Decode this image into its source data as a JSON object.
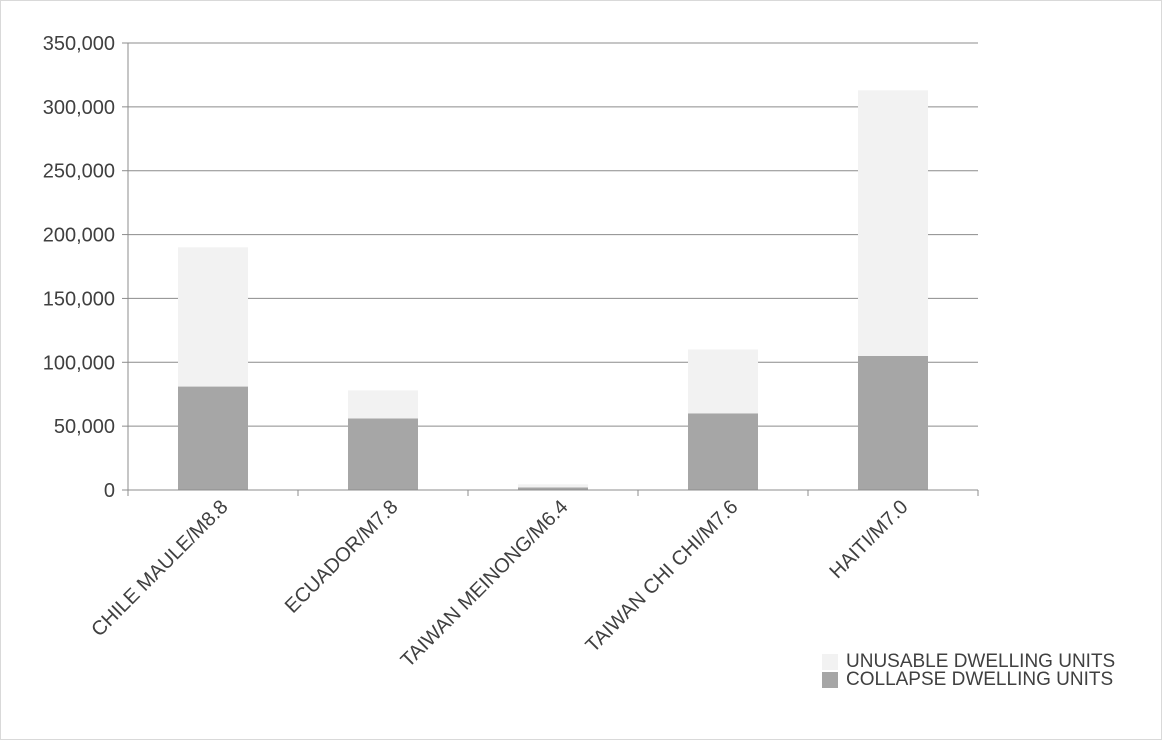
{
  "chart_data": {
    "type": "bar",
    "stacked": true,
    "title": "",
    "xlabel": "",
    "ylabel": "",
    "categories": [
      "CHILE MAULE/M8.8",
      "ECUADOR/M7.8",
      "TAIWAN MEINONG/M6.4",
      "TAIWAN CHI CHI/M7.6",
      "HAITI/M7.0"
    ],
    "series": [
      {
        "name": "COLLAPSE DWELLING UNITS",
        "color": "#a6a6a6",
        "values": [
          81000,
          56000,
          2000,
          60000,
          105000
        ]
      },
      {
        "name": "UNUSABLE DWELLING UNITS",
        "color": "#f2f2f2",
        "values": [
          109000,
          22000,
          2500,
          50000,
          208000
        ]
      }
    ],
    "ylim": [
      0,
      350000
    ],
    "yticks": [
      0,
      50000,
      100000,
      150000,
      200000,
      250000,
      300000,
      350000
    ],
    "ytick_labels": [
      "0",
      "50,000",
      "100,000",
      "150,000",
      "200,000",
      "250,000",
      "300,000",
      "350,000"
    ],
    "grid": true,
    "legend_position": "bottom-right"
  }
}
